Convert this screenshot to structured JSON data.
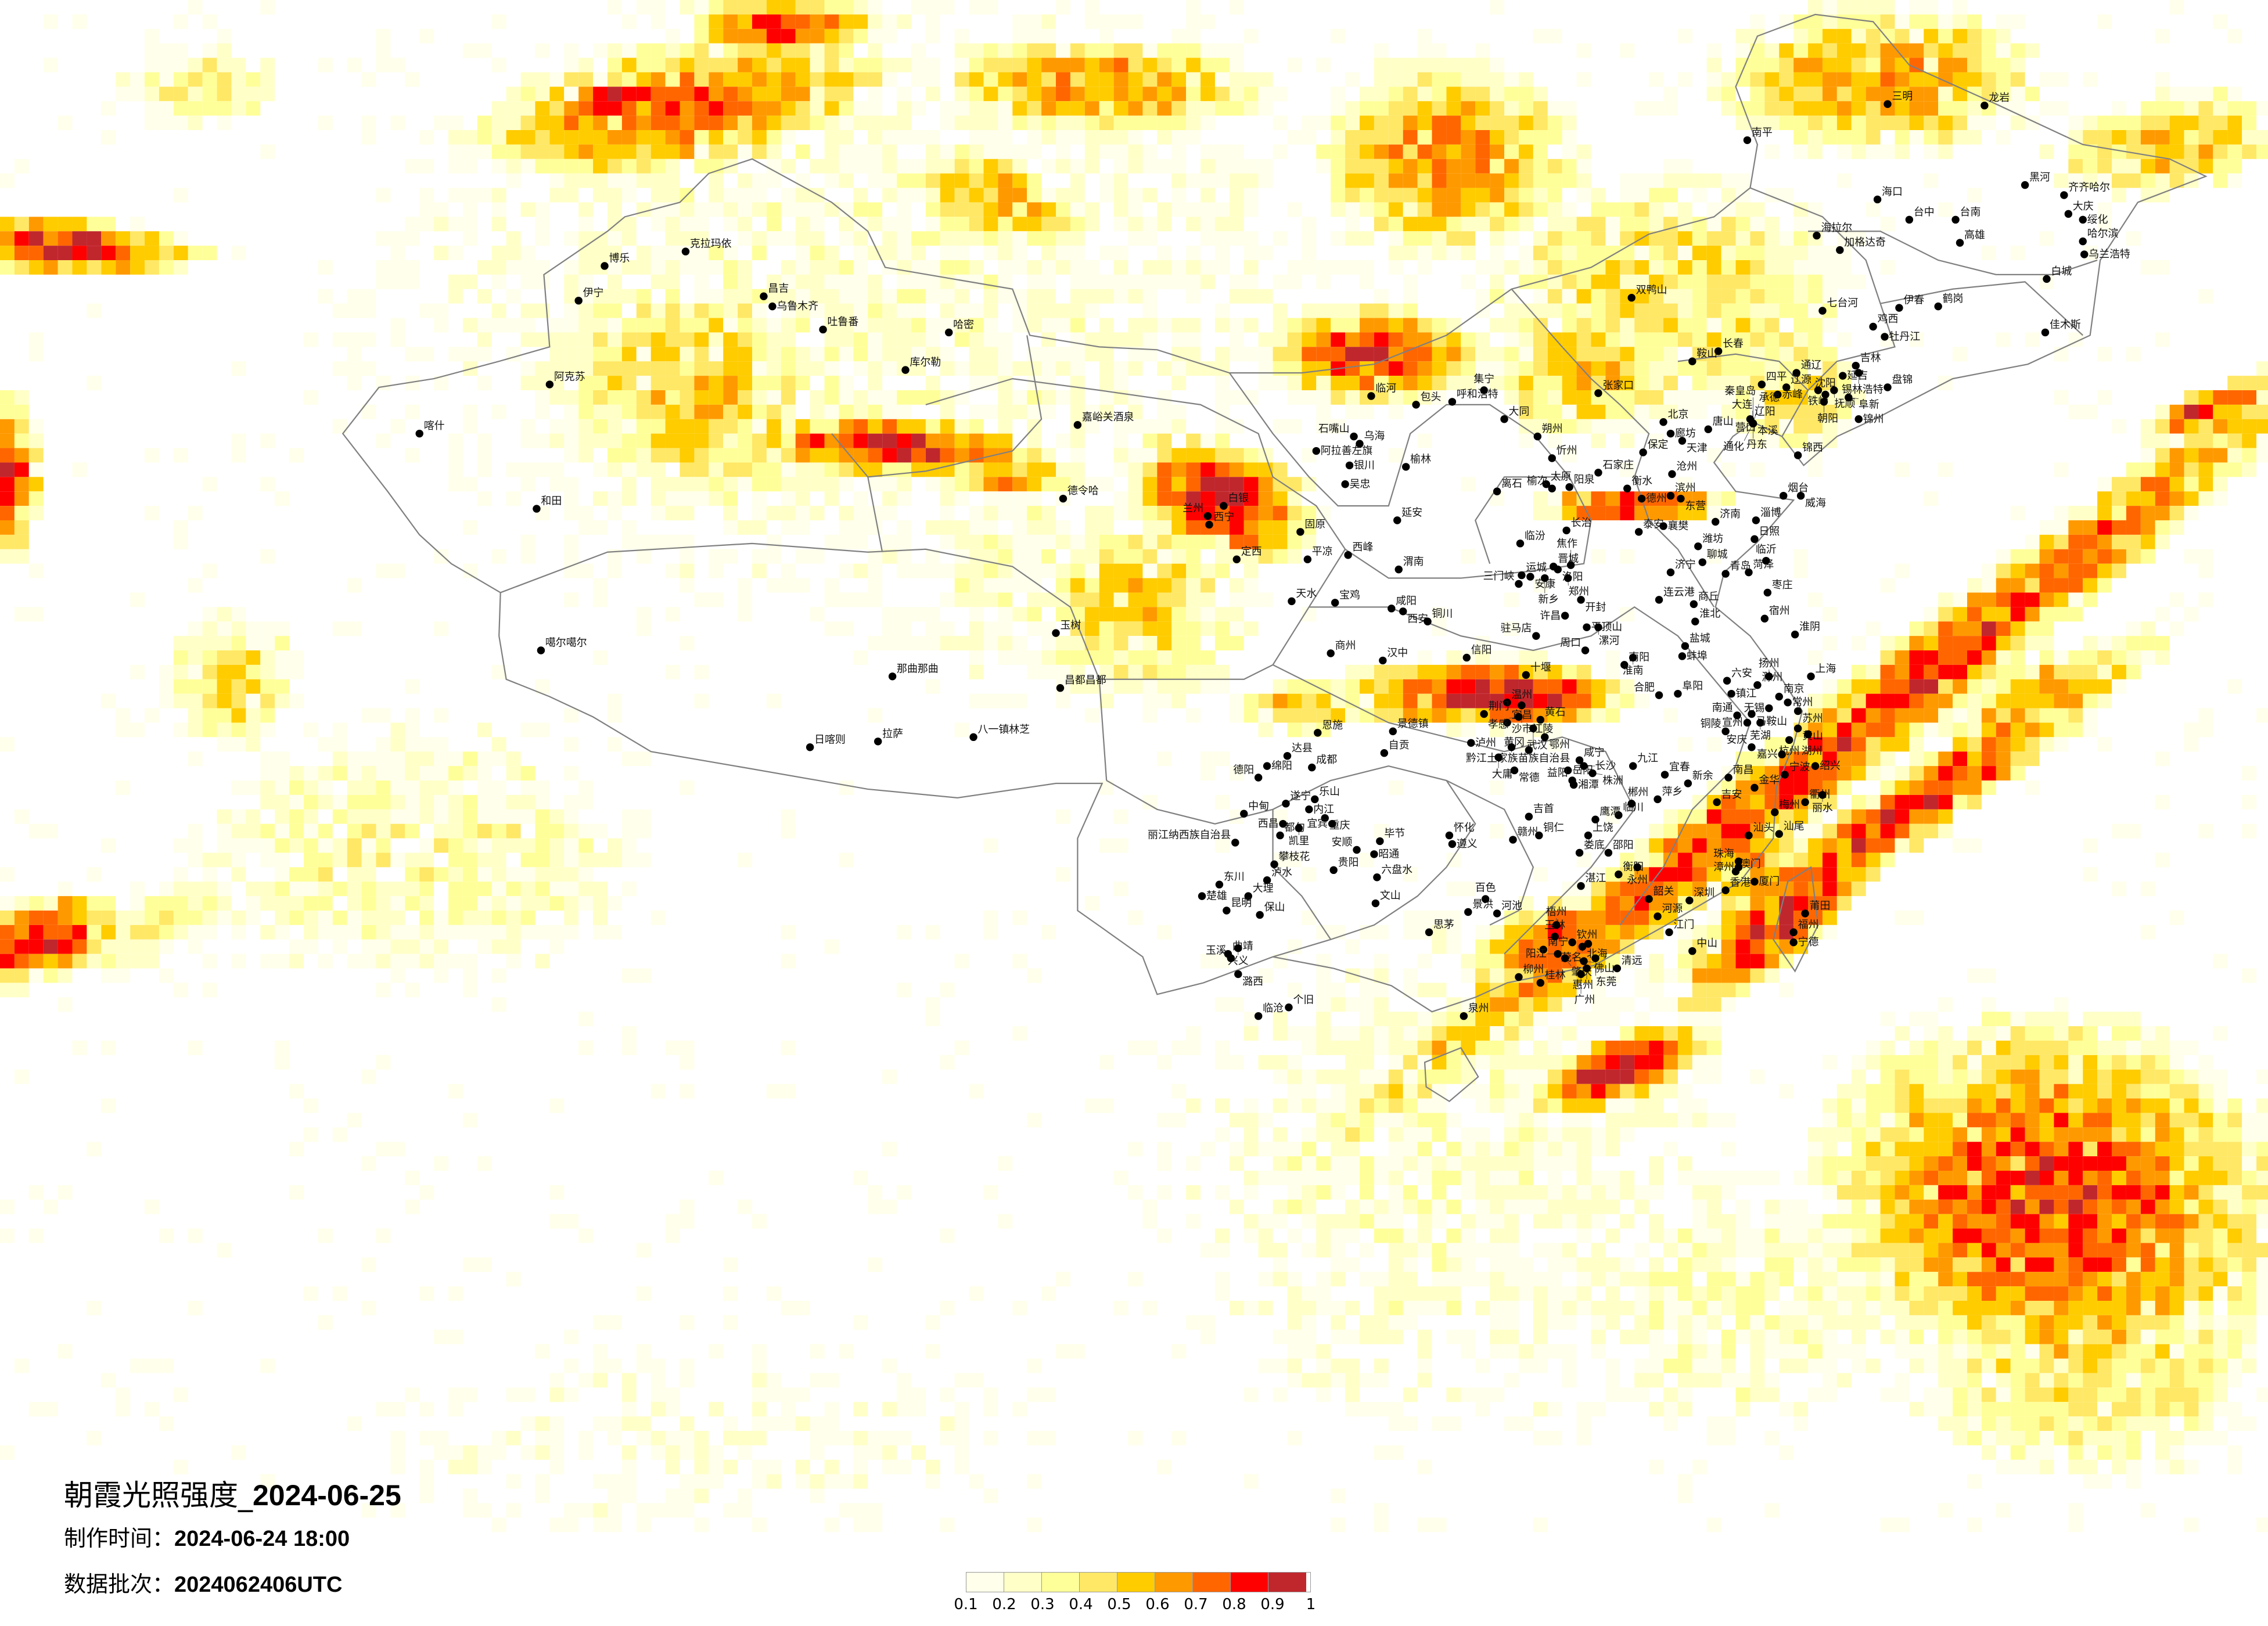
{
  "title": {
    "prefix": "朝霞光照强度_",
    "date": "2024-06-25"
  },
  "made_time": {
    "label": "制作时间：",
    "value": "2024-06-24 18:00"
  },
  "data_batch": {
    "label": "数据批次：",
    "value": "2024062406UTC"
  },
  "legend": {
    "labels": [
      "0.1",
      "0.2",
      "0.3",
      "0.4",
      "0.5",
      "0.6",
      "0.7",
      "0.8",
      "0.9",
      "1"
    ],
    "colors": [
      "#FFFFEB",
      "#FFFFC8",
      "#FFFF99",
      "#FFE866",
      "#FFCC00",
      "#FF9900",
      "#FF6600",
      "#FF0000",
      "#C0272D"
    ]
  },
  "map": {
    "boundary_color": "#808080",
    "city_marker_color": "#000000",
    "cities": [
      "克拉玛依",
      "博乐",
      "伊宁",
      "昌吉",
      "乌鲁木齐",
      "吐鲁番",
      "哈密",
      "库尔勒",
      "阿克苏",
      "喀什",
      "和田",
      "噶尔噶尔",
      "那曲那曲",
      "拉萨",
      "日喀则",
      "八一镇林芝",
      "昌都昌都",
      "玉树",
      "德令哈",
      "嘉峪关酒泉",
      "西宁",
      "临河",
      "包头",
      "呼和浩特",
      "集宁",
      "张家口",
      "大同",
      "乌海",
      "石嘴山",
      "阿拉善左旗",
      "银川",
      "吴忠",
      "北京",
      "廊坊",
      "天津",
      "唐山",
      "保定",
      "沧州",
      "石家庄",
      "衡水",
      "德州",
      "滨州",
      "东营",
      "烟台",
      "威海",
      "太原",
      "榆次",
      "阳泉",
      "忻州",
      "朔州",
      "榆林",
      "离石",
      "延安",
      "临汾",
      "长治",
      "晋城",
      "运城",
      "兰州",
      "白银",
      "定西",
      "固原",
      "平凉",
      "西峰",
      "天水",
      "宝鸡",
      "咸阳",
      "西安",
      "渭南",
      "铜川",
      "商州",
      "汉中",
      "安康",
      "三门峡",
      "洛阳",
      "焦作",
      "新乡",
      "郑州",
      "开封",
      "许昌",
      "平顶山",
      "漯河",
      "周口",
      "驻马店",
      "南阳",
      "信阳",
      "十堰",
      "襄樊",
      "济南",
      "淄博",
      "潍坊",
      "泰安",
      "聊城",
      "济宁",
      "菏泽",
      "临沂",
      "日照",
      "青岛",
      "枣庄",
      "连云港",
      "商丘",
      "淮北",
      "宿州",
      "淮阴",
      "盐城",
      "蚌埠",
      "淮南",
      "阜阳",
      "合肥",
      "六安",
      "滁州",
      "扬州",
      "镇江",
      "南京",
      "常州",
      "无锡",
      "苏州",
      "上海",
      "南通",
      "马鞍山",
      "芜湖",
      "宣州",
      "铜陵",
      "安庆",
      "黄山",
      "杭州",
      "湖州",
      "嘉兴",
      "绍兴",
      "宁波",
      "金华",
      "衢州",
      "丽水",
      "温州",
      "荆门",
      "宜昌",
      "沙市江陵",
      "孝感",
      "武汉",
      "鄂州",
      "黄石",
      "黄冈",
      "咸宁",
      "九江",
      "景德镇",
      "恩施",
      "达县",
      "绵阳",
      "德阳",
      "成都",
      "遂宁",
      "乐山",
      "内江",
      "自贡",
      "重庆",
      "宜宾",
      "泸州",
      "黔江土家族苗族自治县",
      "大庸",
      "常德",
      "岳阳",
      "益阳",
      "长沙",
      "湘潭",
      "株洲",
      "萍乡",
      "宜春",
      "新余",
      "吉安",
      "南昌",
      "临川",
      "鹰潭",
      "上饶",
      "娄底",
      "邵阳",
      "衡阳",
      "永州",
      "郴州",
      "赣州",
      "吉首",
      "铜仁",
      "怀化",
      "遵义",
      "毕节",
      "昭通",
      "六盘水",
      "贵阳",
      "安顺",
      "都匀",
      "凯里",
      "中甸",
      "西昌",
      "丽江纳西族自治县",
      "攀枝花",
      "东川",
      "泸水",
      "大理",
      "保山",
      "楚雄",
      "昆明",
      "曲靖",
      "兴义",
      "潞西",
      "玉溪",
      "临沧",
      "个旧",
      "文山",
      "思茅",
      "景洪",
      "百色",
      "河池",
      "柳州",
      "桂林",
      "南宁",
      "玉林",
      "钦州",
      "北海",
      "梧州",
      "湛江",
      "茂名",
      "阳江",
      "肇庆",
      "佛山",
      "东莞",
      "惠州",
      "广州",
      "清远",
      "韶关",
      "河源",
      "江门",
      "中山",
      "深圳",
      "香港",
      "澳门",
      "珠海",
      "汕尾",
      "梅州",
      "汕头",
      "漳州",
      "厦门",
      "泉州",
      "莆田",
      "福州",
      "宁德",
      "南平",
      "三明",
      "龙岩",
      "海口",
      "台中",
      "台南",
      "高雄",
      "海拉尔",
      "加格达奇",
      "黑河",
      "齐齐哈尔",
      "大庆",
      "绥化",
      "哈尔滨",
      "乌兰浩特",
      "白城",
      "伊春",
      "鹤岗",
      "佳木斯",
      "双鸭山",
      "七台河",
      "鸡西",
      "牡丹江",
      "长春",
      "吉林",
      "延吉",
      "锡林浩特",
      "通辽",
      "四平",
      "辽源",
      "赤峰",
      "铁岭",
      "沈阳",
      "抚顺",
      "阜新",
      "朝阳",
      "锦州",
      "锦西",
      "盘锦",
      "鞍山",
      "辽阳",
      "本溪",
      "营口",
      "丹东",
      "大连",
      "通化",
      "承德",
      "秦皇岛"
    ]
  }
}
